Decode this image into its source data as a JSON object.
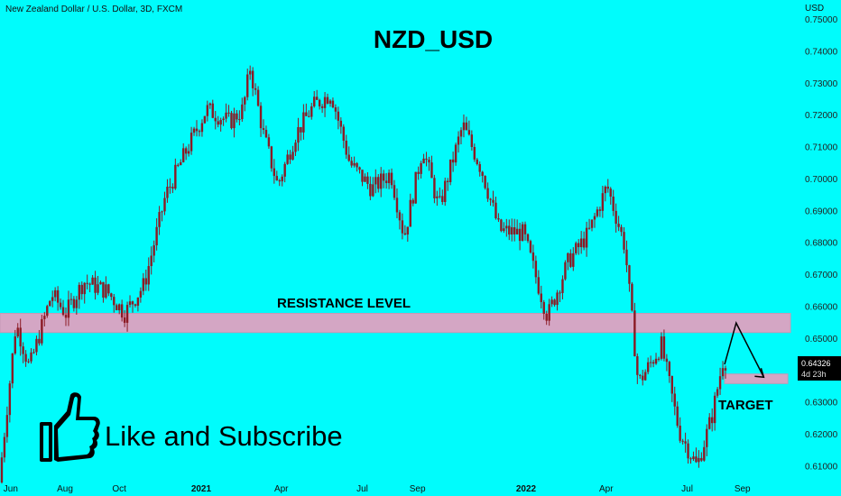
{
  "symbol": "New Zealand Dollar / U.S. Dollar, 3D, FXCM",
  "title": "NZD_USD",
  "currency": "USD",
  "annotations": {
    "resistance": "RESISTANCE LEVEL",
    "target": "TARGET",
    "like": "Like and Subscribe"
  },
  "price_label": {
    "value": "0.64326",
    "countdown": "4d 23h"
  },
  "colors": {
    "background": "#00fcfc",
    "zone": "#d4a6c4",
    "candle": "#8b1a24",
    "ink": "#000000"
  },
  "icons": {
    "thumb": "thumbs-up-icon"
  },
  "chart_data": {
    "type": "candlestick",
    "title": "NZD_USD",
    "ylabel": "USD",
    "ylim": [
      0.605,
      0.75
    ],
    "y_ticks": [
      0.61,
      0.62,
      0.63,
      0.64,
      0.65,
      0.66,
      0.67,
      0.68,
      0.69,
      0.7,
      0.71,
      0.72,
      0.73,
      0.74,
      0.75
    ],
    "y_tick_labels": [
      "0.61000",
      "0.62000",
      "0.63000",
      "0.64000",
      "0.65000",
      "0.66000",
      "0.67000",
      "0.68000",
      "0.69000",
      "0.70000",
      "0.71000",
      "0.72000",
      "0.73000",
      "0.74000",
      "0.75000"
    ],
    "x_range": [
      "2020-05-20",
      "2022-10-25"
    ],
    "x_ticks": [
      {
        "label": "Jun",
        "date": "2020-06-01"
      },
      {
        "label": "Aug",
        "date": "2020-08-01"
      },
      {
        "label": "Oct",
        "date": "2020-10-01"
      },
      {
        "label": "2021",
        "date": "2021-01-01"
      },
      {
        "label": "Apr",
        "date": "2021-04-01"
      },
      {
        "label": "Jul",
        "date": "2021-07-01"
      },
      {
        "label": "Sep",
        "date": "2021-09-01"
      },
      {
        "label": "2022",
        "date": "2022-01-01"
      },
      {
        "label": "Apr",
        "date": "2022-04-01"
      },
      {
        "label": "Jul",
        "date": "2022-07-01"
      },
      {
        "label": "Sep",
        "date": "2022-09-01"
      }
    ],
    "path": [
      [
        "2020-05-22",
        0.605
      ],
      [
        "2020-06-10",
        0.655
      ],
      [
        "2020-06-25",
        0.641
      ],
      [
        "2020-07-20",
        0.664
      ],
      [
        "2020-08-05",
        0.658
      ],
      [
        "2020-08-25",
        0.668
      ],
      [
        "2020-09-20",
        0.665
      ],
      [
        "2020-10-10",
        0.658
      ],
      [
        "2020-11-01",
        0.667
      ],
      [
        "2020-11-25",
        0.695
      ],
      [
        "2020-12-15",
        0.707
      ],
      [
        "2021-01-10",
        0.722
      ],
      [
        "2021-02-05",
        0.718
      ],
      [
        "2021-02-20",
        0.722
      ],
      [
        "2021-02-28",
        0.735
      ],
      [
        "2021-03-15",
        0.714
      ],
      [
        "2021-03-31",
        0.698
      ],
      [
        "2021-04-20",
        0.714
      ],
      [
        "2021-05-10",
        0.723
      ],
      [
        "2021-05-30",
        0.727
      ],
      [
        "2021-06-20",
        0.705
      ],
      [
        "2021-07-15",
        0.697
      ],
      [
        "2021-08-05",
        0.702
      ],
      [
        "2021-08-20",
        0.682
      ],
      [
        "2021-09-10",
        0.71
      ],
      [
        "2021-09-28",
        0.691
      ],
      [
        "2021-10-25",
        0.717
      ],
      [
        "2021-11-15",
        0.703
      ],
      [
        "2021-12-05",
        0.684
      ],
      [
        "2022-01-01",
        0.683
      ],
      [
        "2022-01-28",
        0.657
      ],
      [
        "2022-02-20",
        0.674
      ],
      [
        "2022-03-15",
        0.683
      ],
      [
        "2022-04-05",
        0.698
      ],
      [
        "2022-04-25",
        0.679
      ],
      [
        "2022-05-10",
        0.636
      ],
      [
        "2022-06-05",
        0.648
      ],
      [
        "2022-06-25",
        0.621
      ],
      [
        "2022-07-15",
        0.61
      ],
      [
        "2022-08-01",
        0.626
      ],
      [
        "2022-08-13",
        0.643
      ]
    ],
    "zones": [
      {
        "name": "RESISTANCE LEVEL",
        "y_low": 0.652,
        "y_high": 0.658,
        "x_from": "2020-05-20",
        "x_to": "2022-10-25"
      },
      {
        "name": "TARGET",
        "y_low": 0.636,
        "y_high": 0.639,
        "x_from": "2022-08-12",
        "x_to": "2022-10-22"
      }
    ],
    "projection": [
      [
        "2022-08-12",
        0.642
      ],
      [
        "2022-08-25",
        0.655
      ],
      [
        "2022-09-25",
        0.638
      ]
    ]
  }
}
